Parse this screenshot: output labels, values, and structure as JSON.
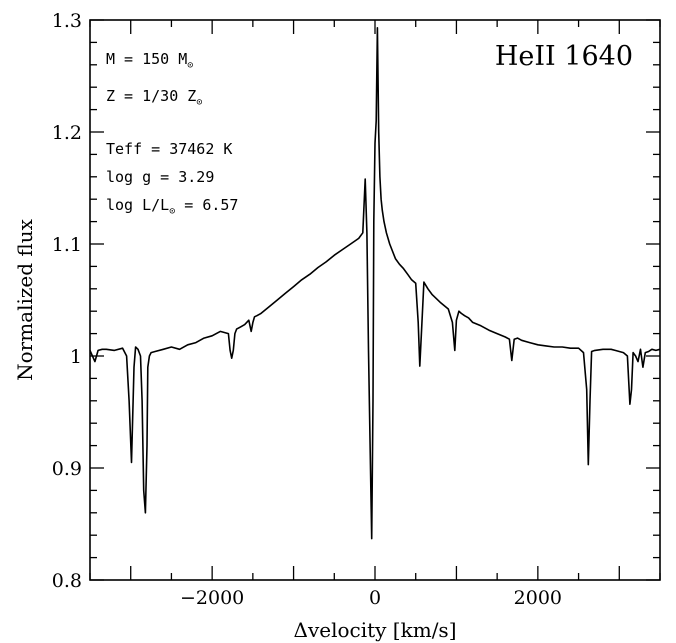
{
  "chart_data": {
    "type": "line",
    "title": "",
    "xlabel": "Δvelocity [km/s]",
    "ylabel": "Normalized flux",
    "xlim": [
      -3500,
      3500
    ],
    "ylim": [
      0.8,
      1.3
    ],
    "xticks": [
      -2000,
      0,
      2000
    ],
    "xtick_labels": [
      "−2000",
      "0",
      "2000"
    ],
    "yticks": [
      0.8,
      0.9,
      1.0,
      1.1,
      1.2,
      1.3
    ],
    "ytick_labels": [
      "0.8",
      "0.9",
      "1",
      "1.1",
      "1.2",
      "1.3"
    ],
    "grid": false,
    "line_label": "HeII 1640",
    "annotations": {
      "mass": {
        "text": "M = 150 M",
        "sub": "⊙"
      },
      "metallicity": {
        "text": "Z = 1/30 Z",
        "sub": "⊙"
      },
      "teff": {
        "text": "Teff = 37462 K"
      },
      "logg": {
        "text": "log g = 3.29"
      },
      "logl": {
        "text": "log L/L",
        "sub": "⊙",
        "tail": " = 6.57"
      }
    },
    "series": [
      {
        "x": [
          -3500,
          -3440,
          -3400,
          -3350,
          -3300,
          -3200,
          -3100,
          -3050,
          -3020,
          -2990,
          -2960,
          -2940,
          -2910,
          -2880,
          -2860,
          -2840,
          -2820,
          -2800,
          -2790,
          -2770,
          -2750,
          -2700,
          -2600,
          -2500,
          -2400,
          -2300,
          -2200,
          -2100,
          -2000,
          -1900,
          -1800,
          -1780,
          -1760,
          -1740,
          -1720,
          -1700,
          -1650,
          -1600,
          -1550,
          -1520,
          -1500,
          -1480,
          -1450,
          -1400,
          -1300,
          -1200,
          -1100,
          -1000,
          -900,
          -800,
          -700,
          -600,
          -500,
          -400,
          -300,
          -200,
          -150,
          -120,
          -100,
          -80,
          -60,
          -40,
          -25,
          -15,
          0,
          15,
          30,
          45,
          60,
          75,
          90,
          110,
          140,
          180,
          250,
          300,
          350,
          400,
          450,
          500,
          530,
          550,
          570,
          600,
          650,
          700,
          800,
          900,
          950,
          980,
          1000,
          1030,
          1060,
          1100,
          1150,
          1200,
          1300,
          1400,
          1500,
          1600,
          1650,
          1680,
          1710,
          1750,
          1800,
          1900,
          2000,
          2100,
          2200,
          2300,
          2400,
          2500,
          2560,
          2600,
          2620,
          2640,
          2660,
          2700,
          2800,
          2900,
          2950,
          3000,
          3050,
          3100,
          3130,
          3150,
          3170,
          3200,
          3230,
          3260,
          3290,
          3320,
          3360,
          3400,
          3450,
          3500
        ],
        "y": [
          1.005,
          0.995,
          1.005,
          1.006,
          1.006,
          1.005,
          1.007,
          1.0,
          0.96,
          0.905,
          0.99,
          1.008,
          1.006,
          1.0,
          0.96,
          0.88,
          0.86,
          0.92,
          0.99,
          1.0,
          1.003,
          1.004,
          1.006,
          1.008,
          1.006,
          1.01,
          1.012,
          1.016,
          1.018,
          1.022,
          1.02,
          1.005,
          0.998,
          1.005,
          1.02,
          1.024,
          1.026,
          1.028,
          1.032,
          1.022,
          1.03,
          1.035,
          1.036,
          1.038,
          1.044,
          1.05,
          1.056,
          1.062,
          1.068,
          1.073,
          1.079,
          1.084,
          1.09,
          1.095,
          1.1,
          1.105,
          1.11,
          1.158,
          1.11,
          1.005,
          0.92,
          0.837,
          0.96,
          1.12,
          1.19,
          1.21,
          1.293,
          1.2,
          1.16,
          1.14,
          1.13,
          1.12,
          1.11,
          1.1,
          1.087,
          1.082,
          1.078,
          1.073,
          1.068,
          1.065,
          1.03,
          0.991,
          1.02,
          1.066,
          1.06,
          1.055,
          1.048,
          1.042,
          1.03,
          1.005,
          1.032,
          1.04,
          1.038,
          1.036,
          1.034,
          1.03,
          1.027,
          1.023,
          1.02,
          1.017,
          1.015,
          0.996,
          1.015,
          1.016,
          1.014,
          1.012,
          1.01,
          1.009,
          1.008,
          1.008,
          1.007,
          1.007,
          1.003,
          0.97,
          0.903,
          0.96,
          1.004,
          1.005,
          1.006,
          1.006,
          1.005,
          1.004,
          1.003,
          1.0,
          0.957,
          0.97,
          1.003,
          1.0,
          0.995,
          1.006,
          0.99,
          1.003,
          1.004,
          1.006,
          1.005,
          1.006
        ]
      }
    ]
  }
}
